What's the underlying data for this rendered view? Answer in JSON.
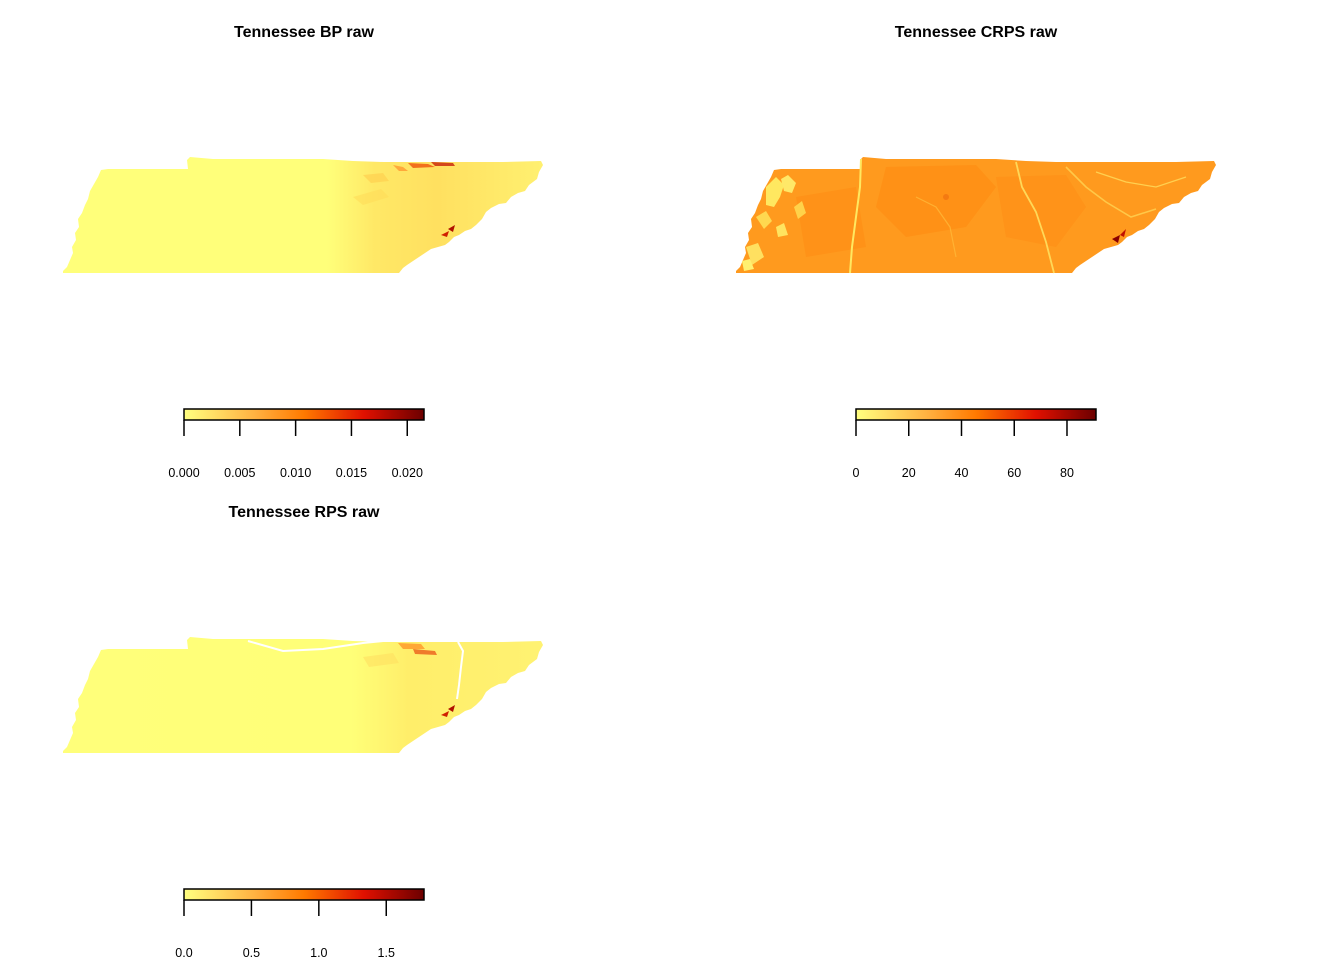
{
  "panels": [
    {
      "title": "Tennessee BP raw",
      "legend": {
        "ticks": [
          "0.000",
          "0.005",
          "0.010",
          "0.015",
          "0.020"
        ],
        "tick_values": [
          0,
          0.005,
          0.01,
          0.015,
          0.02
        ],
        "range": [
          0,
          0.0215
        ]
      }
    },
    {
      "title": "Tennessee CRPS raw",
      "legend": {
        "ticks": [
          "0",
          "20",
          "40",
          "60",
          "80"
        ],
        "tick_values": [
          0,
          20,
          40,
          60,
          80
        ],
        "range": [
          0,
          91
        ]
      }
    },
    {
      "title": "Tennessee RPS raw",
      "legend": {
        "ticks": [
          "0.0",
          "0.5",
          "1.0",
          "1.5"
        ],
        "tick_values": [
          0,
          0.5,
          1.0,
          1.5
        ],
        "range": [
          0,
          1.78
        ]
      }
    }
  ],
  "colors": {
    "scale": [
      "#ffff80",
      "#ffa040",
      "#ff6a00",
      "#d40000",
      "#6b0000"
    ],
    "bp_fill": "#ffff7a",
    "crps_fill": "#ff9a1e",
    "rps_fill": "#ffff7a",
    "border_line": "#ffffff"
  }
}
